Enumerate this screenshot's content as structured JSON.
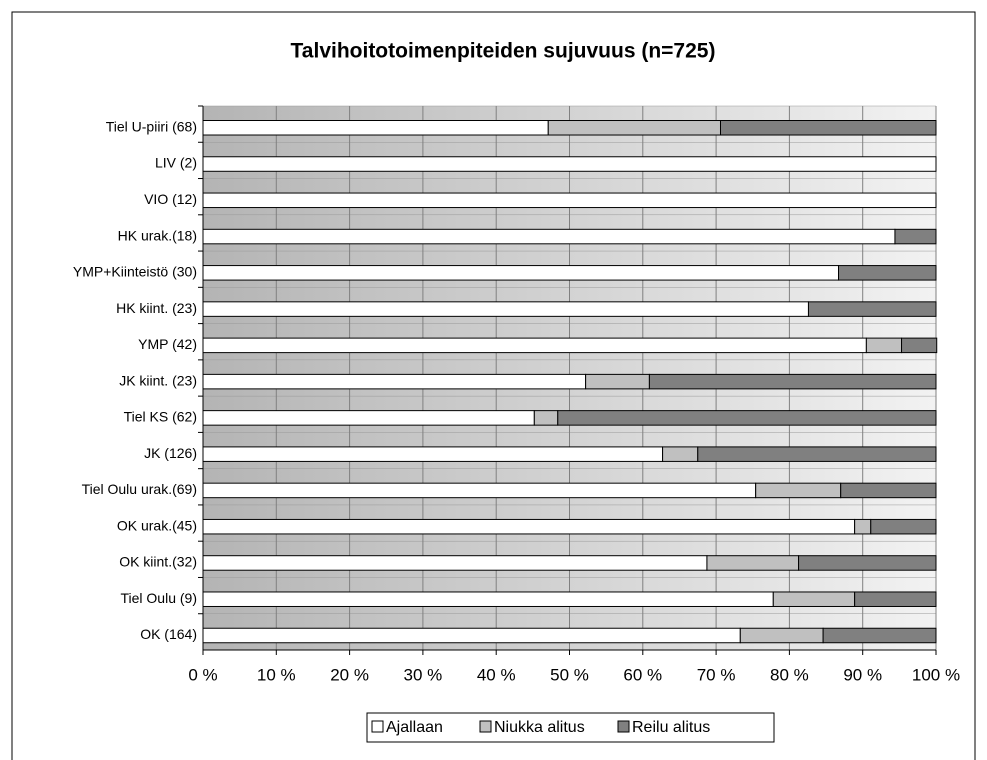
{
  "chart_data": {
    "type": "stacked-bar-horizontal",
    "title": "Talvihoitotoimenpiteiden sujuvuus (n=725)",
    "categories": [
      "Tiel U-piiri (68)",
      "LIV (2)",
      "VIO (12)",
      "HK urak.(18)",
      "YMP+Kiinteistö (30)",
      "HK kiint. (23)",
      "YMP (42)",
      "JK kiint. (23)",
      "Tiel KS (62)",
      "JK (126)",
      "Tiel Oulu urak.(69)",
      "OK urak.(45)",
      "OK kiint.(32)",
      "Tiel Oulu (9)",
      "OK (164)"
    ],
    "series": [
      {
        "name": "Ajallaan",
        "color": "#ffffff",
        "values": [
          47.1,
          100,
          100,
          94.4,
          86.7,
          82.6,
          90.5,
          52.2,
          45.2,
          62.7,
          75.4,
          88.9,
          68.75,
          77.8,
          73.3
        ]
      },
      {
        "name": "Niukka alitus",
        "color": "#c0c0c0",
        "values": [
          23.5,
          0,
          0,
          0,
          0,
          0,
          4.8,
          8.7,
          3.2,
          4.8,
          11.6,
          2.2,
          12.5,
          11.1,
          11.3
        ]
      },
      {
        "name": "Reilu alitus",
        "color": "#808080",
        "values": [
          29.4,
          0,
          0,
          5.6,
          13.3,
          17.4,
          4.8,
          39.1,
          51.6,
          32.5,
          13.0,
          8.9,
          18.75,
          11.1,
          15.4
        ]
      }
    ],
    "xlim": [
      0,
      100
    ],
    "xticks": [
      {
        "value": 0,
        "label": "0 %"
      },
      {
        "value": 10,
        "label": "10 %"
      },
      {
        "value": 20,
        "label": "20 %"
      },
      {
        "value": 30,
        "label": "30 %"
      },
      {
        "value": 40,
        "label": "40 %"
      },
      {
        "value": 50,
        "label": "50 %"
      },
      {
        "value": 60,
        "label": "60 %"
      },
      {
        "value": 70,
        "label": "70 %"
      },
      {
        "value": 80,
        "label": "80 %"
      },
      {
        "value": 90,
        "label": "90 %"
      },
      {
        "value": 100,
        "label": "100 %"
      }
    ],
    "grid": true,
    "legend": "bottom"
  }
}
